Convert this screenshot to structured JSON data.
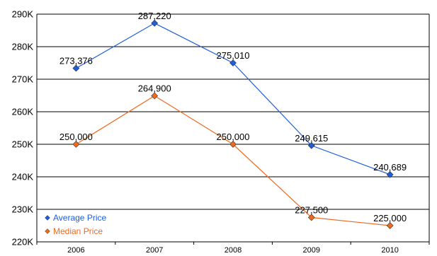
{
  "chart_data": {
    "type": "line",
    "title": "",
    "xlabel": "",
    "ylabel": "",
    "categories": [
      "2006",
      "2007",
      "2008",
      "2009",
      "2010"
    ],
    "ylim": [
      220000,
      290000
    ],
    "y_ticks": [
      220000,
      230000,
      240000,
      250000,
      260000,
      270000,
      280000,
      290000
    ],
    "y_tick_labels": [
      "220K",
      "230K",
      "240K",
      "250K",
      "260K",
      "270K",
      "280K",
      "290K"
    ],
    "grid": true,
    "legend_position": "bottom-left",
    "series": [
      {
        "name": "Average Price",
        "color": "#1f5ed8",
        "marker": "diamond",
        "values": [
          273376,
          287220,
          275010,
          249615,
          240689
        ],
        "labels": [
          "273,376",
          "287,220",
          "275,010",
          "249,615",
          "240,689"
        ]
      },
      {
        "name": "Median Price",
        "color": "#f06a1e",
        "marker": "diamond",
        "values": [
          250000,
          264900,
          250000,
          227500,
          225000
        ],
        "labels": [
          "250,000",
          "264,900",
          "250,000",
          "227,500",
          "225,000"
        ]
      }
    ]
  }
}
